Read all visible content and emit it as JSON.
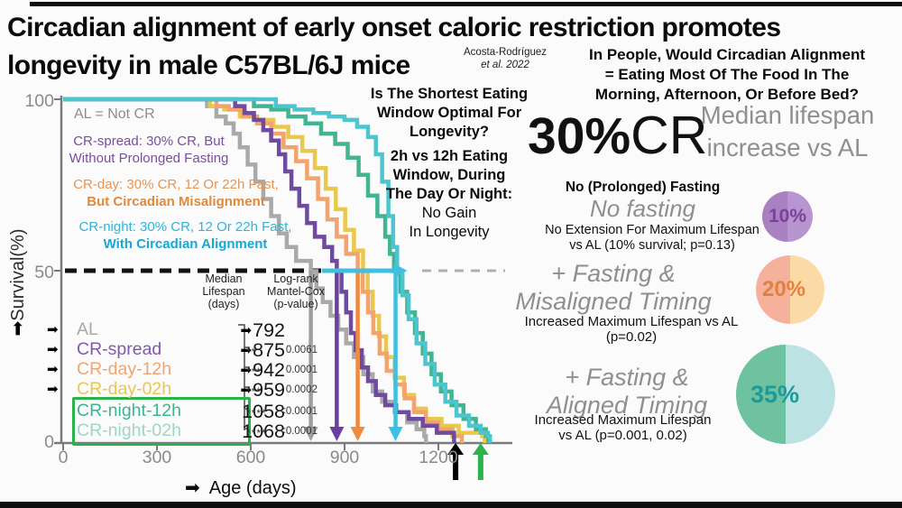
{
  "header": {
    "title_line1": "Circadian alignment of early onset caloric restriction promotes",
    "title_line2": "longevity in male C57BL/6J mice",
    "citation_line1": "Acosta-Rodríguez",
    "citation_line2": "et al. 2022"
  },
  "questions": {
    "people": [
      "In People, Would Circadian Alignment",
      "= Eating Most Of The Food In The",
      "Morning, Afternoon, Or Before Bed?"
    ],
    "eating_window": [
      "Is The Shortest Eating",
      "Window Optimal For",
      "Longevity?"
    ],
    "window_result_bold": [
      "2h vs 12h Eating",
      "Window, During",
      "The Day Or Night:"
    ],
    "window_result": [
      "No Gain",
      "In Longevity"
    ]
  },
  "cr_summary": {
    "pct": "30%",
    "cr": "CR",
    "heading_line1": "Median lifespan",
    "heading_line2": "increase vs AL"
  },
  "plot": {
    "legend": {
      "al_note": "AL = Not CR",
      "spread_line1": "CR-spread: 30% CR, But",
      "spread_line2": "Without Prolonged Fasting",
      "day_line1": "CR-day: 30% CR, 12 Or 22h Fast,",
      "day_line2": "But Circadian Misalignment",
      "night_line1": "CR-night: 30% CR, 12 Or 22h Fast,",
      "night_line2": "With Circadian Alignment"
    },
    "y_label": "Survival(%)",
    "x_label": "Age (days)",
    "arrow_glyph": "➡",
    "y_ticks": [
      "100",
      "50",
      "0"
    ],
    "x_ticks": [
      "0",
      "300",
      "600",
      "900",
      "1200"
    ]
  },
  "table": {
    "header_col1": [
      "Median",
      "Lifespan",
      "(days)"
    ],
    "header_col2": [
      "Log-rank",
      "Mantel-Cox",
      "(p-value)"
    ],
    "rows": [
      {
        "label": "AL",
        "value": "792",
        "stars": "",
        "p": "",
        "color": "#a8a8a8"
      },
      {
        "label": "CR-spread",
        "value": "875",
        "stars": "**",
        "p": "0.0061",
        "color": "#8459aa"
      },
      {
        "label": "CR-day-12h",
        "value": "942",
        "stars": "***",
        "p": "0.0001",
        "color": "#f0a470"
      },
      {
        "label": "CR-day-02h",
        "value": "959",
        "stars": "***",
        "p": "0.0002",
        "color": "#e7c750"
      },
      {
        "label": "CR-night-12h",
        "value": "1058",
        "stars": "****",
        "p": "<0.0001",
        "color": "#3fb392"
      },
      {
        "label": "CR-night-02h",
        "value": "1068",
        "stars": "****",
        "p": "<0.0001",
        "color": "#9fd4c8"
      }
    ],
    "highlight_box_color": "#2ab34a"
  },
  "sections": [
    {
      "heading_bold": "No (Prolonged) Fasting",
      "italic_line1": "No fasting",
      "italic_line2": "",
      "body_line1": "No Extension For Maximum Lifespan",
      "body_line2": "vs AL (10% survival; p=0.13)",
      "pie": {
        "pct": "10%",
        "left": "#a981c3",
        "right": "#b795cf",
        "text_color": "#7b3f9e"
      }
    },
    {
      "heading_bold": "",
      "italic_line1": "+ Fasting &",
      "italic_line2": "Misaligned Timing",
      "body_line1": "Increased Maximum Lifespan vs AL",
      "body_line2": "(p=0.02)",
      "pie": {
        "pct": "20%",
        "left": "#f6b19c",
        "right": "#fbdaa5",
        "text_color": "#e0813f"
      }
    },
    {
      "heading_bold": "",
      "italic_line1": "+ Fasting &",
      "italic_line2": "Aligned Timing",
      "body_line1": "Increased Maximum Lifespan",
      "body_line2": "vs AL (p=0.001, 0.02)",
      "pie": {
        "pct": "35%",
        "left": "#6ec2a0",
        "right": "#bce2e3",
        "text_color": "#1b9a9c"
      }
    }
  ],
  "chart_data": {
    "type": "line",
    "variant": "kaplan_meier_step",
    "title": "",
    "xlabel": "Age (days)",
    "ylabel": "Survival(%)",
    "xlim": [
      0,
      1430
    ],
    "ylim": [
      0,
      100
    ],
    "x_ticks": [
      0,
      300,
      600,
      900,
      1200
    ],
    "y_ticks": [
      0,
      50,
      100
    ],
    "grid": false,
    "reference_line": {
      "y": 50,
      "style": "dashed",
      "color_left": "#111111",
      "color_right": "#b0b0b0"
    },
    "series": [
      {
        "name": "AL",
        "color": "#a9a9a9",
        "median_days": 792,
        "p_vs_AL": null,
        "significance": "",
        "points": [
          [
            0,
            100
          ],
          [
            430,
            100
          ],
          [
            460,
            98
          ],
          [
            490,
            95
          ],
          [
            520,
            93
          ],
          [
            545,
            90
          ],
          [
            565,
            86
          ],
          [
            590,
            81
          ],
          [
            615,
            76
          ],
          [
            640,
            71
          ],
          [
            665,
            66
          ],
          [
            690,
            61
          ],
          [
            715,
            57
          ],
          [
            745,
            53
          ],
          [
            792,
            50
          ],
          [
            810,
            45
          ],
          [
            830,
            41
          ],
          [
            855,
            37
          ],
          [
            880,
            33
          ],
          [
            905,
            29
          ],
          [
            930,
            25
          ],
          [
            960,
            20
          ],
          [
            990,
            15
          ],
          [
            1020,
            12
          ],
          [
            1060,
            9
          ],
          [
            1100,
            6
          ],
          [
            1130,
            4
          ],
          [
            1155,
            2
          ],
          [
            1160,
            0
          ]
        ]
      },
      {
        "name": "CR-day-02h",
        "color": "#e9c94d",
        "median_days": 959,
        "p_vs_AL": "0.0002",
        "significance": "***",
        "points": [
          [
            0,
            100
          ],
          [
            445,
            100
          ],
          [
            470,
            98
          ],
          [
            515,
            97
          ],
          [
            565,
            95
          ],
          [
            620,
            94
          ],
          [
            672,
            92
          ],
          [
            720,
            89
          ],
          [
            765,
            85
          ],
          [
            805,
            80
          ],
          [
            840,
            74
          ],
          [
            872,
            68
          ],
          [
            902,
            62
          ],
          [
            930,
            56
          ],
          [
            959,
            50
          ],
          [
            974,
            44
          ],
          [
            990,
            37
          ],
          [
            1010,
            31
          ],
          [
            1033,
            25
          ],
          [
            1060,
            19
          ],
          [
            1090,
            14
          ],
          [
            1122,
            10
          ],
          [
            1160,
            7
          ],
          [
            1210,
            5
          ],
          [
            1265,
            3
          ],
          [
            1340,
            2
          ],
          [
            1348,
            0
          ]
        ]
      },
      {
        "name": "CR-day-12h",
        "color": "#f2a36e",
        "median_days": 942,
        "p_vs_AL": "0.0001",
        "significance": "***",
        "points": [
          [
            0,
            100
          ],
          [
            460,
            100
          ],
          [
            490,
            98
          ],
          [
            530,
            97
          ],
          [
            575,
            95
          ],
          [
            620,
            93
          ],
          [
            665,
            90
          ],
          [
            705,
            86
          ],
          [
            745,
            82
          ],
          [
            780,
            77
          ],
          [
            815,
            71
          ],
          [
            845,
            65
          ],
          [
            875,
            60
          ],
          [
            905,
            55
          ],
          [
            942,
            50
          ],
          [
            958,
            44
          ],
          [
            975,
            38
          ],
          [
            992,
            32
          ],
          [
            1012,
            26
          ],
          [
            1035,
            21
          ],
          [
            1062,
            17
          ],
          [
            1092,
            13
          ],
          [
            1122,
            9
          ],
          [
            1160,
            6
          ],
          [
            1200,
            4
          ],
          [
            1245,
            2
          ],
          [
            1275,
            0
          ]
        ]
      },
      {
        "name": "CR-spread",
        "color": "#6e4b9e",
        "median_days": 875,
        "p_vs_AL": "0.0061",
        "significance": "**",
        "points": [
          [
            0,
            100
          ],
          [
            520,
            100
          ],
          [
            550,
            98
          ],
          [
            580,
            96
          ],
          [
            610,
            94
          ],
          [
            640,
            91
          ],
          [
            665,
            88
          ],
          [
            690,
            84
          ],
          [
            710,
            79
          ],
          [
            730,
            74
          ],
          [
            755,
            69
          ],
          [
            780,
            64
          ],
          [
            805,
            60
          ],
          [
            835,
            57
          ],
          [
            860,
            53
          ],
          [
            875,
            50
          ],
          [
            890,
            44
          ],
          [
            905,
            38
          ],
          [
            920,
            32
          ],
          [
            935,
            27
          ],
          [
            955,
            22
          ],
          [
            975,
            18
          ],
          [
            1000,
            14
          ],
          [
            1030,
            11
          ],
          [
            1065,
            9
          ],
          [
            1105,
            7
          ],
          [
            1150,
            5
          ],
          [
            1195,
            3
          ],
          [
            1245,
            3
          ],
          [
            1250,
            0
          ]
        ]
      },
      {
        "name": "CR-night-12h",
        "color": "#41b492",
        "median_days": 1058,
        "p_vs_AL": "<0.0001",
        "significance": "****",
        "points": [
          [
            0,
            100
          ],
          [
            560,
            100
          ],
          [
            610,
            98
          ],
          [
            665,
            97
          ],
          [
            720,
            95
          ],
          [
            775,
            93
          ],
          [
            825,
            90
          ],
          [
            870,
            87
          ],
          [
            910,
            83
          ],
          [
            945,
            78
          ],
          [
            975,
            72
          ],
          [
            1005,
            66
          ],
          [
            1030,
            60
          ],
          [
            1045,
            55
          ],
          [
            1058,
            50
          ],
          [
            1078,
            44
          ],
          [
            1100,
            38
          ],
          [
            1125,
            32
          ],
          [
            1150,
            26
          ],
          [
            1178,
            20
          ],
          [
            1208,
            15
          ],
          [
            1242,
            11
          ],
          [
            1280,
            7
          ],
          [
            1320,
            4
          ],
          [
            1352,
            2
          ],
          [
            1360,
            0
          ]
        ]
      },
      {
        "name": "CR-night-02h",
        "color": "#4cc5cf",
        "median_days": 1068,
        "p_vs_AL": "<0.0001",
        "significance": "****",
        "points": [
          [
            0,
            100
          ],
          [
            620,
            100
          ],
          [
            680,
            98
          ],
          [
            740,
            97
          ],
          [
            800,
            96
          ],
          [
            850,
            95
          ],
          [
            900,
            94
          ],
          [
            940,
            92
          ],
          [
            975,
            89
          ],
          [
            1000,
            84
          ],
          [
            1020,
            76
          ],
          [
            1040,
            66
          ],
          [
            1055,
            57
          ],
          [
            1068,
            50
          ],
          [
            1085,
            43
          ],
          [
            1105,
            36
          ],
          [
            1130,
            29
          ],
          [
            1158,
            23
          ],
          [
            1188,
            17
          ],
          [
            1222,
            12
          ],
          [
            1258,
            8
          ],
          [
            1298,
            5
          ],
          [
            1335,
            3
          ],
          [
            1358,
            2
          ],
          [
            1365,
            0
          ]
        ]
      }
    ],
    "median_arrows": [
      {
        "day": 792,
        "color": "#9e9e9e"
      },
      {
        "day": 875,
        "color": "#6b3fa0"
      },
      {
        "day": 942,
        "color": "#f08a3e"
      },
      {
        "day": 1063,
        "color": "#3fc0e0"
      }
    ],
    "max_lifespan_arrows": [
      {
        "day": 1255,
        "color": "#000000"
      },
      {
        "day": 1335,
        "color": "#2cb34c"
      }
    ]
  }
}
